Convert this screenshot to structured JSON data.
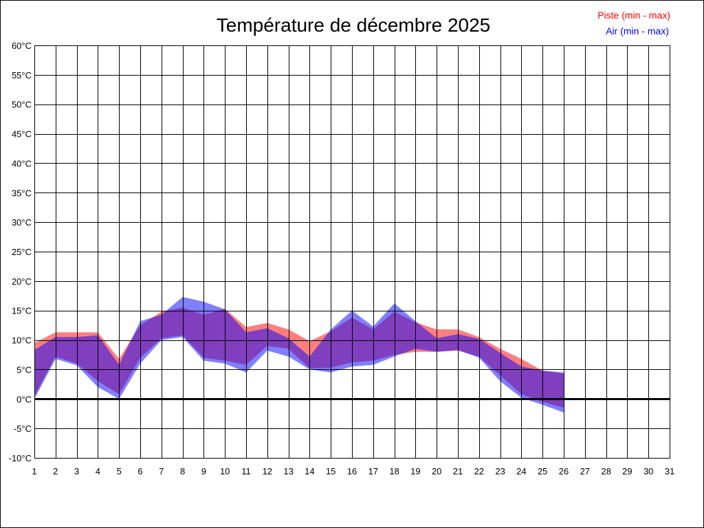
{
  "chart_data": {
    "type": "area",
    "title": "Température de décembre 2025",
    "legend_placement": "top-right",
    "grid": true,
    "x": [
      1,
      2,
      3,
      4,
      5,
      6,
      7,
      8,
      9,
      10,
      11,
      12,
      13,
      14,
      15,
      16,
      17,
      18,
      19,
      20,
      21,
      22,
      23,
      24,
      25,
      26,
      27,
      28,
      29,
      30,
      31
    ],
    "x_tick_labels": [
      "1",
      "2",
      "3",
      "4",
      "5",
      "6",
      "7",
      "8",
      "9",
      "10",
      "11",
      "12",
      "13",
      "14",
      "15",
      "16",
      "17",
      "18",
      "19",
      "20",
      "21",
      "22",
      "23",
      "24",
      "25",
      "26",
      "27",
      "28",
      "29",
      "30",
      "31"
    ],
    "xlim": [
      1,
      31
    ],
    "ylim": [
      -10,
      60
    ],
    "y_ticks": [
      -10,
      -5,
      0,
      5,
      10,
      15,
      20,
      25,
      30,
      35,
      40,
      45,
      50,
      55,
      60
    ],
    "y_tick_labels": [
      "-10°C",
      "-5°C",
      "0°C",
      "5°C",
      "10°C",
      "15°C",
      "20°C",
      "25°C",
      "30°C",
      "35°C",
      "40°C",
      "45°C",
      "50°C",
      "55°C",
      "60°C"
    ],
    "series": [
      {
        "name": "Piste (min - max)",
        "color": "#ff0000",
        "x": [
          1,
          2,
          3,
          4,
          5,
          6,
          7,
          8,
          9,
          10,
          11,
          12,
          13,
          14,
          15,
          16,
          17,
          18,
          19,
          20,
          21,
          22,
          23,
          24,
          25,
          26
        ],
        "min": [
          0.5,
          7.2,
          6.0,
          3.0,
          0.8,
          7.0,
          10.3,
          10.8,
          7.0,
          6.5,
          5.8,
          9.0,
          8.5,
          5.2,
          5.3,
          6.2,
          6.5,
          7.5,
          8.0,
          8.0,
          8.2,
          7.2,
          4.0,
          0.8,
          -0.5,
          -1.5
        ],
        "max": [
          9.5,
          11.3,
          11.3,
          11.3,
          6.8,
          12.5,
          14.8,
          15.5,
          14.3,
          15.3,
          12.2,
          12.9,
          11.8,
          9.8,
          11.5,
          13.8,
          11.8,
          14.8,
          13.0,
          11.8,
          11.8,
          10.5,
          8.5,
          6.8,
          4.8,
          4.3
        ]
      },
      {
        "name": "Air (min - max)",
        "color": "#0000ff",
        "x": [
          1,
          2,
          3,
          4,
          5,
          6,
          7,
          8,
          9,
          10,
          11,
          12,
          13,
          14,
          15,
          16,
          17,
          18,
          19,
          20,
          21,
          22,
          23,
          24,
          25,
          26
        ],
        "min": [
          0.0,
          6.8,
          5.7,
          2.0,
          0.0,
          6.0,
          10.0,
          10.5,
          6.5,
          6.0,
          4.5,
          8.2,
          7.2,
          5.0,
          4.5,
          5.5,
          5.8,
          7.2,
          8.5,
          8.0,
          8.3,
          7.0,
          3.0,
          0.2,
          -1.0,
          -2.3
        ],
        "max": [
          8.3,
          10.5,
          10.5,
          10.8,
          5.8,
          13.2,
          14.3,
          17.3,
          16.5,
          15.2,
          11.3,
          12.0,
          10.3,
          7.2,
          11.8,
          15.0,
          12.3,
          16.2,
          13.2,
          10.3,
          11.0,
          10.2,
          7.8,
          5.5,
          4.8,
          4.5
        ]
      }
    ]
  }
}
